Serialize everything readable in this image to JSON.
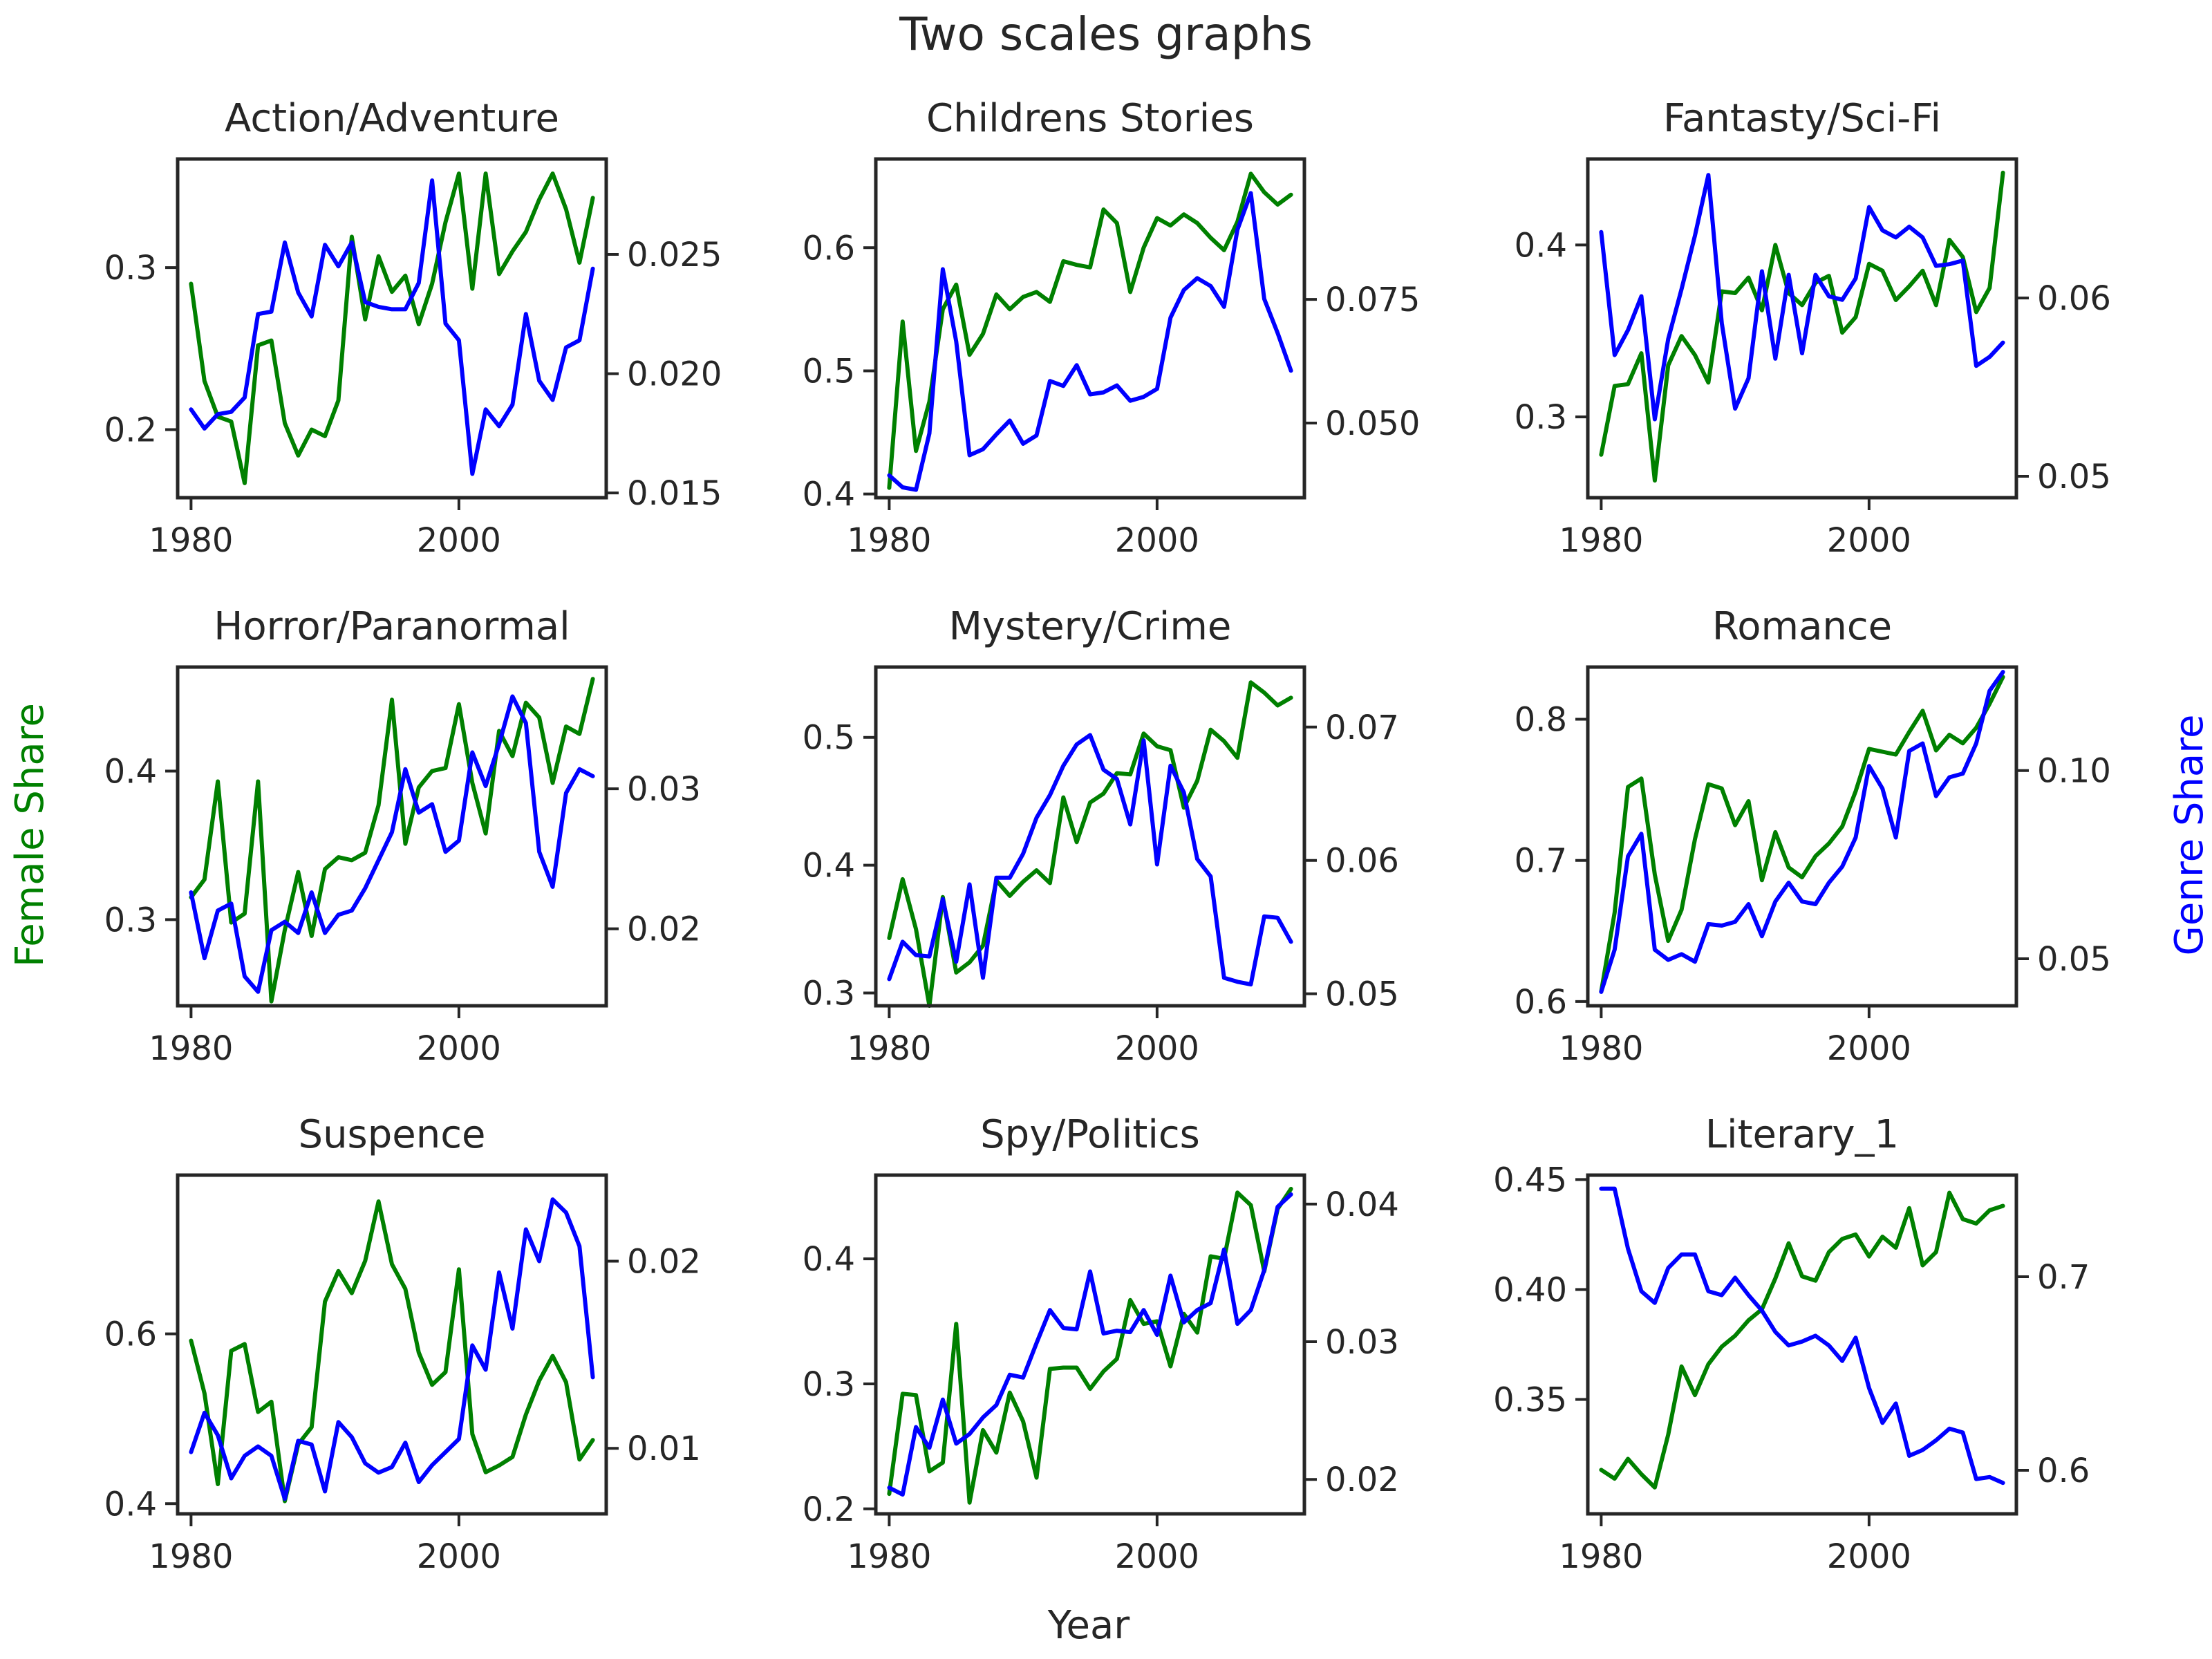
{
  "chart_data": {
    "type": "line",
    "title": "Two scales graphs",
    "xlabel": "Year",
    "ylabel_left": "Female Share",
    "ylabel_right": "Genre Share",
    "colors": {
      "female": "#008000",
      "genre": "#0000ff"
    },
    "x": [
      1980,
      1981,
      1982,
      1983,
      1984,
      1985,
      1986,
      1987,
      1988,
      1989,
      1990,
      1991,
      1992,
      1993,
      1994,
      1995,
      1996,
      1997,
      1998,
      1999,
      2000,
      2001,
      2002,
      2003,
      2004,
      2005,
      2006,
      2007,
      2008,
      2009,
      2010
    ],
    "xlim": [
      1979,
      2011
    ],
    "xticks": [
      1980,
      2000
    ],
    "panels": [
      {
        "title": "Action/Adventure",
        "left": {
          "ylim": [
            0.158,
            0.367
          ],
          "ticks": [
            0.2,
            0.3
          ],
          "tick_labels": [
            "0.2",
            "0.3"
          ],
          "values": [
            0.29,
            0.23,
            0.208,
            0.205,
            0.167,
            0.252,
            0.255,
            0.204,
            0.184,
            0.2,
            0.196,
            0.218,
            0.319,
            0.268,
            0.307,
            0.285,
            0.295,
            0.265,
            0.29,
            0.328,
            0.358,
            0.287,
            0.358,
            0.296,
            0.31,
            0.322,
            0.342,
            0.358,
            0.336,
            0.303,
            0.343
          ]
        },
        "right": {
          "ylim": [
            0.0148,
            0.029
          ],
          "ticks": [
            0.015,
            0.02,
            0.025
          ],
          "tick_labels": [
            "0.015",
            "0.020",
            "0.025"
          ],
          "values": [
            0.0185,
            0.0177,
            0.0183,
            0.0184,
            0.019,
            0.0225,
            0.0226,
            0.0255,
            0.0234,
            0.0224,
            0.0254,
            0.0245,
            0.0255,
            0.023,
            0.0228,
            0.0227,
            0.0227,
            0.0238,
            0.0281,
            0.0221,
            0.0214,
            0.0158,
            0.0185,
            0.0178,
            0.0187,
            0.0225,
            0.0197,
            0.0189,
            0.0211,
            0.0214,
            0.0244
          ]
        }
      },
      {
        "title": "Childrens Stories",
        "left": {
          "ylim": [
            0.397,
            0.672
          ],
          "ticks": [
            0.4,
            0.5,
            0.6
          ],
          "tick_labels": [
            "0.4",
            "0.5",
            "0.6"
          ],
          "values": [
            0.405,
            0.54,
            0.435,
            0.475,
            0.55,
            0.57,
            0.513,
            0.53,
            0.562,
            0.55,
            0.56,
            0.564,
            0.556,
            0.589,
            0.586,
            0.584,
            0.631,
            0.62,
            0.564,
            0.6,
            0.624,
            0.618,
            0.627,
            0.62,
            0.608,
            0.598,
            0.621,
            0.66,
            0.645,
            0.635,
            0.643
          ]
        },
        "right": {
          "ylim": [
            0.0349,
            0.1034
          ],
          "ticks": [
            0.05,
            0.075
          ],
          "tick_labels": [
            "0.050",
            "0.075"
          ],
          "values": [
            0.0394,
            0.037,
            0.0365,
            0.0479,
            0.0811,
            0.0665,
            0.0435,
            0.0447,
            0.0477,
            0.0505,
            0.0458,
            0.0475,
            0.0585,
            0.0575,
            0.0617,
            0.0558,
            0.0562,
            0.0576,
            0.0545,
            0.0553,
            0.0569,
            0.0713,
            0.0769,
            0.0793,
            0.0777,
            0.0735,
            0.0891,
            0.0965,
            0.0751,
            0.0682,
            0.0606
          ]
        }
      },
      {
        "title": "Fantasty/Sci-Fi",
        "left": {
          "ylim": [
            0.253,
            0.45
          ],
          "ticks": [
            0.3,
            0.4
          ],
          "tick_labels": [
            "0.3",
            "0.4"
          ],
          "values": [
            0.278,
            0.318,
            0.319,
            0.337,
            0.263,
            0.33,
            0.347,
            0.336,
            0.32,
            0.373,
            0.372,
            0.381,
            0.362,
            0.4,
            0.372,
            0.365,
            0.378,
            0.382,
            0.349,
            0.358,
            0.389,
            0.385,
            0.368,
            0.376,
            0.385,
            0.365,
            0.403,
            0.393,
            0.361,
            0.375,
            0.442
          ]
        },
        "right": {
          "ylim": [
            0.0488,
            0.0678
          ],
          "ticks": [
            0.05,
            0.06
          ],
          "tick_labels": [
            "0.05",
            "0.06"
          ],
          "values": [
            0.0637,
            0.0568,
            0.0582,
            0.0601,
            0.0532,
            0.0577,
            0.0605,
            0.0635,
            0.0669,
            0.0586,
            0.0538,
            0.0555,
            0.0615,
            0.0566,
            0.0613,
            0.0569,
            0.0613,
            0.0601,
            0.0599,
            0.0611,
            0.0651,
            0.0638,
            0.0634,
            0.064,
            0.0634,
            0.0618,
            0.0619,
            0.0621,
            0.0562,
            0.0567,
            0.0575
          ]
        }
      },
      {
        "title": "Horror/Paranormal",
        "left": {
          "ylim": [
            0.242,
            0.47
          ],
          "ticks": [
            0.3,
            0.4
          ],
          "tick_labels": [
            "0.3",
            "0.4"
          ],
          "values": [
            0.315,
            0.327,
            0.393,
            0.298,
            0.304,
            0.393,
            0.245,
            0.293,
            0.332,
            0.289,
            0.334,
            0.342,
            0.34,
            0.345,
            0.377,
            0.448,
            0.351,
            0.389,
            0.4,
            0.402,
            0.445,
            0.392,
            0.358,
            0.427,
            0.41,
            0.446,
            0.436,
            0.392,
            0.43,
            0.425,
            0.462
          ]
        },
        "right": {
          "ylim": [
            0.0145,
            0.0387
          ],
          "ticks": [
            0.02,
            0.03
          ],
          "tick_labels": [
            "0.02",
            "0.03"
          ],
          "values": [
            0.0226,
            0.0179,
            0.0213,
            0.0218,
            0.0166,
            0.0155,
            0.0199,
            0.0205,
            0.0197,
            0.0226,
            0.0197,
            0.021,
            0.0213,
            0.0229,
            0.0249,
            0.0269,
            0.0314,
            0.0283,
            0.0289,
            0.0255,
            0.0263,
            0.0326,
            0.0302,
            0.0332,
            0.0366,
            0.0347,
            0.0255,
            0.023,
            0.0297,
            0.0314,
            0.0309
          ]
        }
      },
      {
        "title": "Mystery/Crime",
        "left": {
          "ylim": [
            0.29,
            0.555
          ],
          "ticks": [
            0.3,
            0.4,
            0.5
          ],
          "tick_labels": [
            "0.3",
            "0.4",
            "0.5"
          ],
          "values": [
            0.343,
            0.389,
            0.35,
            0.29,
            0.375,
            0.316,
            0.324,
            0.337,
            0.388,
            0.376,
            0.387,
            0.396,
            0.386,
            0.453,
            0.418,
            0.449,
            0.456,
            0.472,
            0.471,
            0.503,
            0.493,
            0.49,
            0.445,
            0.466,
            0.506,
            0.497,
            0.484,
            0.543,
            0.535,
            0.525,
            0.531
          ]
        },
        "right": {
          "ylim": [
            0.0491,
            0.0745
          ],
          "ticks": [
            0.05,
            0.06,
            0.07
          ],
          "tick_labels": [
            "0.05",
            "0.06",
            "0.07"
          ],
          "values": [
            0.0511,
            0.0539,
            0.0529,
            0.0528,
            0.0571,
            0.0524,
            0.0582,
            0.0512,
            0.0587,
            0.0587,
            0.0605,
            0.0632,
            0.0649,
            0.0671,
            0.0687,
            0.0694,
            0.0668,
            0.0661,
            0.0627,
            0.069,
            0.0597,
            0.0671,
            0.0651,
            0.0601,
            0.0588,
            0.0512,
            0.0509,
            0.0507,
            0.0558,
            0.0557,
            0.0539
          ]
        }
      },
      {
        "title": "Romance",
        "left": {
          "ylim": [
            0.597,
            0.837
          ],
          "ticks": [
            0.6,
            0.7,
            0.8
          ],
          "tick_labels": [
            "0.6",
            "0.7",
            "0.8"
          ],
          "values": [
            0.607,
            0.663,
            0.752,
            0.758,
            0.69,
            0.643,
            0.665,
            0.715,
            0.754,
            0.751,
            0.725,
            0.742,
            0.686,
            0.72,
            0.695,
            0.688,
            0.703,
            0.712,
            0.724,
            0.749,
            0.779,
            0.777,
            0.775,
            0.791,
            0.806,
            0.778,
            0.789,
            0.783,
            0.794,
            0.811,
            0.83
          ]
        },
        "right": {
          "ylim": [
            0.0375,
            0.1275
          ],
          "ticks": [
            0.05,
            0.1
          ],
          "tick_labels": [
            "0.05",
            "0.10"
          ],
          "values": [
            0.0412,
            0.0524,
            0.0772,
            0.0832,
            0.0524,
            0.0497,
            0.0512,
            0.0492,
            0.0592,
            0.0588,
            0.0598,
            0.0645,
            0.056,
            0.0652,
            0.0702,
            0.0652,
            0.0645,
            0.0702,
            0.0745,
            0.0822,
            0.1012,
            0.0952,
            0.0822,
            0.1052,
            0.1072,
            0.0932,
            0.0982,
            0.0992,
            0.1072,
            0.1212,
            0.1262
          ]
        }
      },
      {
        "title": "Suspence",
        "left": {
          "ylim": [
            0.388,
            0.787
          ],
          "ticks": [
            0.4,
            0.6
          ],
          "tick_labels": [
            "0.4",
            "0.6"
          ],
          "values": [
            0.592,
            0.53,
            0.423,
            0.58,
            0.588,
            0.508,
            0.52,
            0.403,
            0.47,
            0.49,
            0.638,
            0.674,
            0.648,
            0.686,
            0.756,
            0.682,
            0.653,
            0.578,
            0.54,
            0.555,
            0.676,
            0.482,
            0.437,
            0.445,
            0.455,
            0.505,
            0.545,
            0.574,
            0.543,
            0.452,
            0.475
          ]
        },
        "right": {
          "ylim": [
            0.0065,
            0.0246
          ],
          "ticks": [
            0.01,
            0.02
          ],
          "tick_labels": [
            "0.01",
            "0.02"
          ],
          "values": [
            0.0098,
            0.0119,
            0.0107,
            0.0084,
            0.0096,
            0.0101,
            0.0096,
            0.0073,
            0.0104,
            0.0102,
            0.0077,
            0.0114,
            0.0106,
            0.0092,
            0.0087,
            0.009,
            0.0103,
            0.0082,
            0.0091,
            0.0098,
            0.0105,
            0.0155,
            0.0142,
            0.0194,
            0.0164,
            0.0217,
            0.02,
            0.0233,
            0.0226,
            0.0208,
            0.0138
          ]
        }
      },
      {
        "title": "Spy/Politics",
        "left": {
          "ylim": [
            0.196,
            0.467
          ],
          "ticks": [
            0.2,
            0.3,
            0.4
          ],
          "tick_labels": [
            "0.2",
            "0.3",
            "0.4"
          ],
          "values": [
            0.212,
            0.292,
            0.291,
            0.23,
            0.237,
            0.348,
            0.205,
            0.263,
            0.245,
            0.293,
            0.27,
            0.225,
            0.312,
            0.313,
            0.313,
            0.296,
            0.31,
            0.32,
            0.367,
            0.348,
            0.35,
            0.314,
            0.356,
            0.341,
            0.402,
            0.4,
            0.453,
            0.443,
            0.39,
            0.44,
            0.456
          ]
        },
        "right": {
          "ylim": [
            0.0175,
            0.0421
          ],
          "ticks": [
            0.02,
            0.03,
            0.04
          ],
          "tick_labels": [
            "0.02",
            "0.03",
            "0.04"
          ],
          "values": [
            0.0194,
            0.0189,
            0.0238,
            0.0223,
            0.0258,
            0.0226,
            0.0233,
            0.0245,
            0.0254,
            0.0276,
            0.0274,
            0.0299,
            0.0323,
            0.031,
            0.0309,
            0.0351,
            0.0306,
            0.0308,
            0.0307,
            0.0323,
            0.0305,
            0.0348,
            0.0314,
            0.0323,
            0.0328,
            0.0367,
            0.0313,
            0.0323,
            0.0352,
            0.0398,
            0.0407
          ]
        }
      },
      {
        "title": "Literary_1",
        "left": {
          "ylim": [
            0.298,
            0.452
          ],
          "ticks": [
            0.35,
            0.4,
            0.45
          ],
          "tick_labels": [
            "0.35",
            "0.40",
            "0.45"
          ],
          "values": [
            0.318,
            0.314,
            0.323,
            0.316,
            0.31,
            0.334,
            0.365,
            0.352,
            0.366,
            0.374,
            0.379,
            0.386,
            0.391,
            0.405,
            0.421,
            0.406,
            0.404,
            0.417,
            0.423,
            0.425,
            0.415,
            0.424,
            0.419,
            0.437,
            0.411,
            0.417,
            0.444,
            0.432,
            0.43,
            0.436,
            0.438
          ]
        },
        "right": {
          "ylim": [
            0.5775,
            0.7525
          ],
          "ticks": [
            0.6,
            0.7
          ],
          "tick_labels": [
            "0.6",
            "0.7"
          ],
          "values": [
            0.7455,
            0.7455,
            0.7145,
            0.6925,
            0.6865,
            0.7045,
            0.7115,
            0.7115,
            0.6925,
            0.6905,
            0.6995,
            0.6905,
            0.6825,
            0.6715,
            0.6645,
            0.6665,
            0.6695,
            0.6645,
            0.6565,
            0.6685,
            0.6425,
            0.6245,
            0.6345,
            0.6075,
            0.6105,
            0.6155,
            0.6215,
            0.6195,
            0.5955,
            0.5965,
            0.5935
          ]
        }
      }
    ]
  }
}
